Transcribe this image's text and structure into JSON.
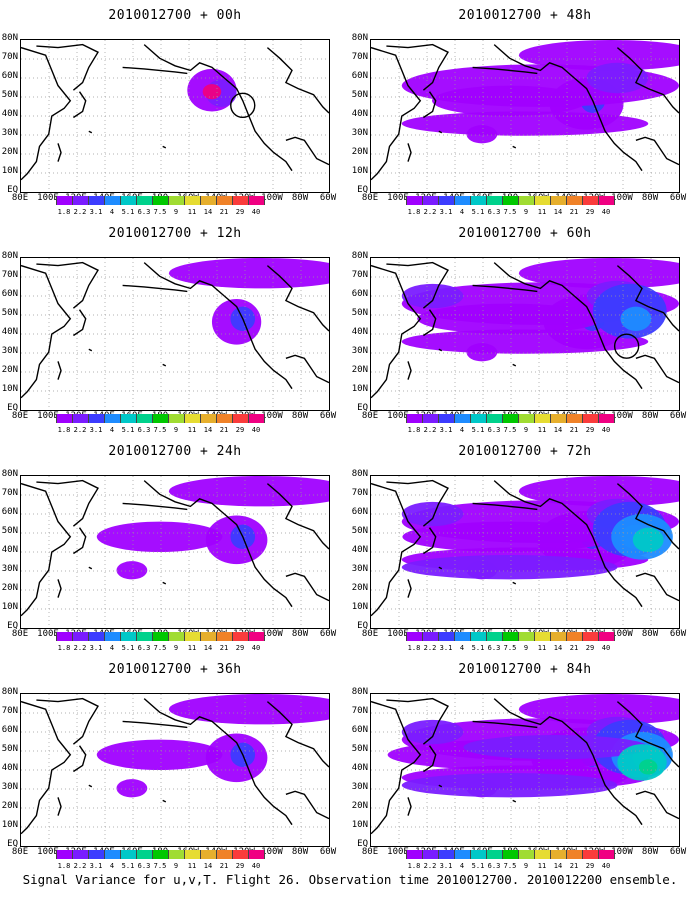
{
  "panels": [
    {
      "title": "2010012700 + 00h",
      "level": 0,
      "circle": [
        0.72,
        0.43
      ]
    },
    {
      "title": "2010012700 + 48h",
      "level": 3
    },
    {
      "title": "2010012700 + 12h",
      "level": 1
    },
    {
      "title": "2010012700 + 60h",
      "level": 4,
      "circle": [
        0.83,
        0.58
      ]
    },
    {
      "title": "2010012700 + 24h",
      "level": 2
    },
    {
      "title": "2010012700 + 72h",
      "level": 5
    },
    {
      "title": "2010012700 + 36h",
      "level": 2
    },
    {
      "title": "2010012700 + 84h",
      "level": 6
    }
  ],
  "lat_labels": [
    "80N",
    "70N",
    "60N",
    "50N",
    "40N",
    "30N",
    "20N",
    "10N",
    "EQ"
  ],
  "lon_labels": [
    "80E",
    "100E",
    "120E",
    "140E",
    "160E",
    "180",
    "160W",
    "140W",
    "120W",
    "100W",
    "80W",
    "60W"
  ],
  "colorbar": {
    "colors": [
      "#a000ff",
      "#7a1cff",
      "#3c3cff",
      "#1e8cff",
      "#00c8c8",
      "#00d28c",
      "#00c800",
      "#a0dc32",
      "#e6dc32",
      "#e6af2d",
      "#f08228",
      "#fa3c3c",
      "#f00082"
    ],
    "labels": [
      "1.8",
      "2.2",
      "3.1",
      "4",
      "5.1",
      "6.3",
      "7.5",
      "9",
      "11",
      "14",
      "21",
      "29",
      "40"
    ]
  },
  "caption": "Signal Variance for u,v,T. Flight 26. Observation time 2010012700. 2010012200 ensemble."
}
